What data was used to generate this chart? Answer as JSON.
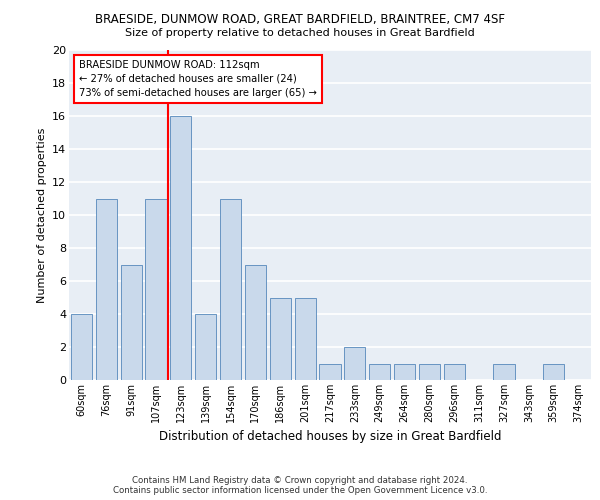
{
  "title1": "BRAESIDE, DUNMOW ROAD, GREAT BARDFIELD, BRAINTREE, CM7 4SF",
  "title2": "Size of property relative to detached houses in Great Bardfield",
  "xlabel": "Distribution of detached houses by size in Great Bardfield",
  "ylabel": "Number of detached properties",
  "bar_labels": [
    "60sqm",
    "76sqm",
    "91sqm",
    "107sqm",
    "123sqm",
    "139sqm",
    "154sqm",
    "170sqm",
    "186sqm",
    "201sqm",
    "217sqm",
    "233sqm",
    "249sqm",
    "264sqm",
    "280sqm",
    "296sqm",
    "311sqm",
    "327sqm",
    "343sqm",
    "359sqm",
    "374sqm"
  ],
  "bar_values": [
    4,
    11,
    7,
    11,
    16,
    4,
    11,
    7,
    5,
    5,
    1,
    2,
    1,
    1,
    1,
    1,
    0,
    1,
    0,
    1,
    0
  ],
  "bar_color": "#c9d9eb",
  "bar_edgecolor": "#5588bb",
  "annotation_text1": "BRAESIDE DUNMOW ROAD: 112sqm",
  "annotation_text2": "← 27% of detached houses are smaller (24)",
  "annotation_text3": "73% of semi-detached houses are larger (65) →",
  "annotation_box_color": "white",
  "annotation_box_edgecolor": "red",
  "vline_color": "red",
  "ylim": [
    0,
    20
  ],
  "yticks": [
    0,
    2,
    4,
    6,
    8,
    10,
    12,
    14,
    16,
    18,
    20
  ],
  "footnote1": "Contains HM Land Registry data © Crown copyright and database right 2024.",
  "footnote2": "Contains public sector information licensed under the Open Government Licence v3.0.",
  "bg_color": "#e8eef5",
  "grid_color": "white"
}
